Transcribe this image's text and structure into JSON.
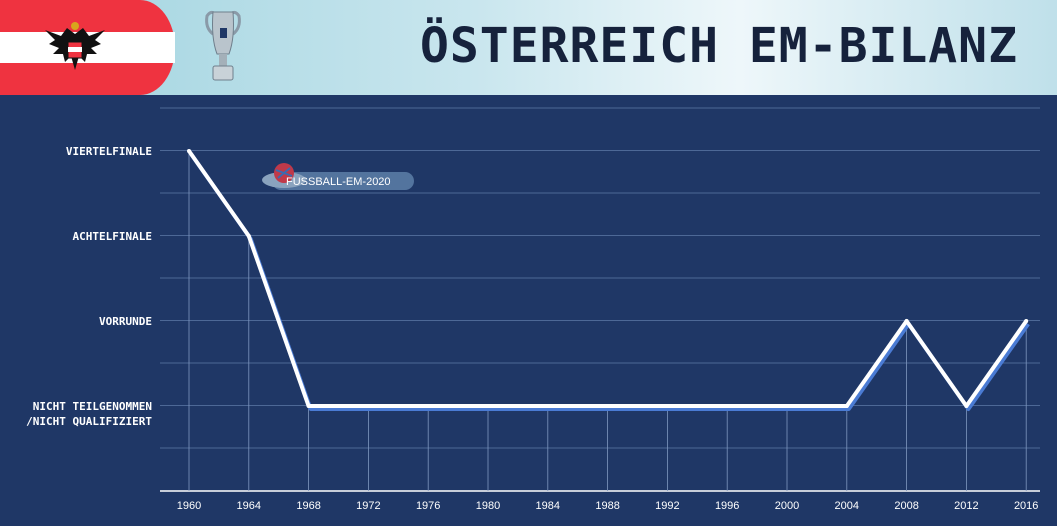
{
  "header": {
    "title": "ÖSTERREICH EM-BILANZ",
    "flag_colors": [
      "#ef3340",
      "#ffffff",
      "#ef3340"
    ]
  },
  "watermark": {
    "text": "FUSSBALL-EM-2020"
  },
  "chart_data": {
    "type": "line",
    "title": "ÖSTERREICH EM-BILANZ",
    "xlabel": "",
    "ylabel": "",
    "categories": [
      "1960",
      "1964",
      "1968",
      "1972",
      "1976",
      "1980",
      "1984",
      "1988",
      "1992",
      "1996",
      "2000",
      "2004",
      "2008",
      "2012",
      "2016"
    ],
    "y_levels": [
      "NICHT TEILGENOMMEN\n/NICHT QUALIFIZIERT",
      "VORRUNDE",
      "ACHTELFINALE",
      "VIERTELFINALE"
    ],
    "series": [
      {
        "values": [
          3,
          2,
          0,
          0,
          0,
          0,
          0,
          0,
          0,
          0,
          0,
          0,
          1,
          0,
          1
        ]
      }
    ],
    "ylim": [
      -0.5,
      4
    ],
    "grid": true,
    "line_color": "#ffffff",
    "shadow_color": "#4a7bd4",
    "background": "#1f3766"
  }
}
